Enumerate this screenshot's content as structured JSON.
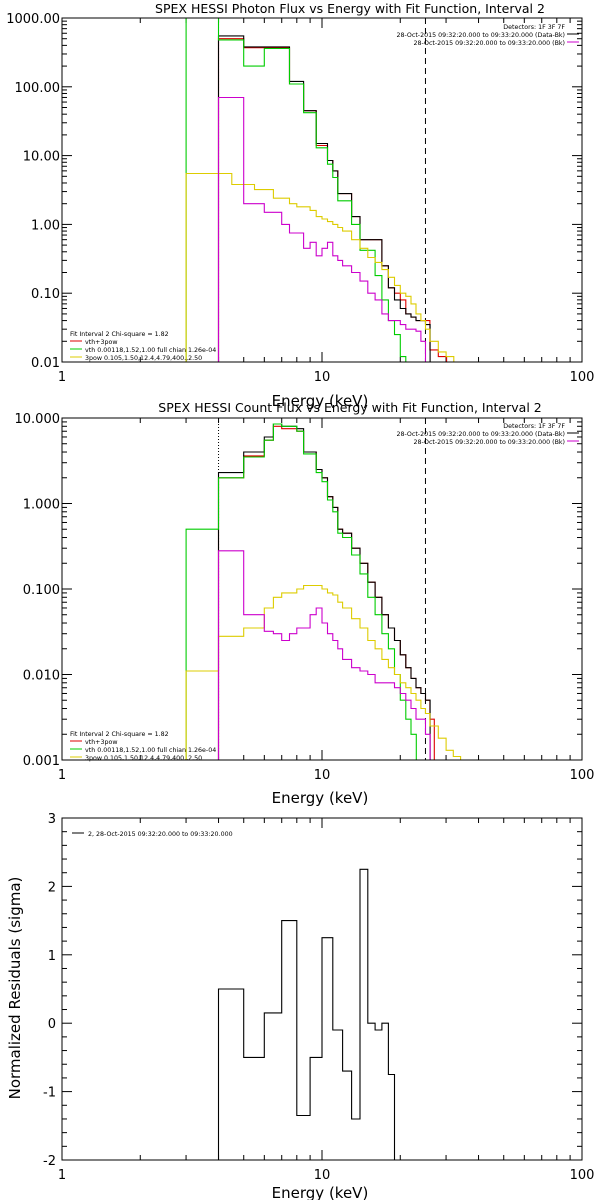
{
  "chart_data": [
    {
      "type": "line",
      "title": "SPEX HESSI Photon Flux vs Energy with Fit Function, Interval 2",
      "xlabel": "Energy (keV)",
      "ylabel": "",
      "xscale": "log",
      "yscale": "log",
      "xlim": [
        1,
        100
      ],
      "ylim": [
        0.01,
        1000
      ],
      "xticklabels": [
        "1",
        "10",
        "100"
      ],
      "yticklabels": [
        "0.01",
        "0.10",
        "1.00",
        "10.00",
        "100.00",
        "1000.00"
      ],
      "info_right": [
        "Detectors: 1F 3F 7F",
        "28-Oct-2015 09:32:20.000 to 09:33:20.000 (Data-Bk)",
        "28-Oct-2015 09:32:20.000 to 09:33:20.000 (Bk)"
      ],
      "legend_left": [
        "Fit Interval 2   Chi-square = 1.82",
        "vth+3pow",
        "vth 0.00118,1.52,1.00  full chian 1.26e-04",
        "3pow 0.105,1.50,12.4,4.79,400.,2.50"
      ],
      "vlines": [
        {
          "x": 4.0,
          "style": "dotted",
          "color": "#cc00cc"
        },
        {
          "x": 25.0,
          "style": "dashed",
          "color": "#000000"
        }
      ],
      "series": [
        {
          "name": "Data-Bk",
          "color": "#000000",
          "x": [
            4,
            4.5,
            5,
            5.5,
            6,
            6.5,
            7,
            7.5,
            8,
            8.5,
            9,
            9.5,
            10,
            10.5,
            11,
            11.5,
            12,
            13,
            14,
            15,
            16,
            17,
            18,
            19,
            20,
            21,
            22,
            23,
            24,
            25
          ],
          "y": [
            550,
            550,
            380,
            380,
            380,
            380,
            380,
            120,
            120,
            45,
            45,
            15,
            15,
            8.5,
            6,
            2.8,
            2.8,
            1.3,
            0.6,
            0.6,
            0.6,
            0.25,
            0.12,
            0.08,
            0.06,
            0.05,
            0.045,
            0.04,
            0.04,
            0.035
          ]
        },
        {
          "name": "vth+3pow",
          "color": "#dd0000",
          "x": [
            4,
            4.5,
            5,
            5.5,
            6,
            6.5,
            7,
            7.5,
            8,
            8.5,
            9,
            9.5,
            10,
            10.5,
            11,
            11.5,
            12,
            13,
            14,
            15,
            16,
            17,
            18,
            19,
            20,
            21,
            22,
            23,
            24,
            25,
            26,
            28
          ],
          "y": [
            500,
            500,
            370,
            370,
            370,
            370,
            370,
            110,
            110,
            45,
            45,
            14,
            14,
            8.5,
            6,
            2.8,
            2.8,
            1.3,
            0.6,
            0.6,
            0.6,
            0.25,
            0.12,
            0.1,
            0.08,
            0.05,
            0.045,
            0.04,
            0.04,
            0.04,
            0.015,
            0.012
          ]
        },
        {
          "name": "vth",
          "color": "#00cc00",
          "x": [
            3,
            4,
            4.5,
            5,
            5.5,
            6,
            6.5,
            7,
            7.5,
            8,
            8.5,
            9,
            9.5,
            10,
            10.5,
            11,
            11.5,
            12,
            13,
            14,
            15,
            16,
            17,
            18,
            19,
            20,
            21
          ],
          "y": [
            1000,
            480,
            480,
            200,
            200,
            360,
            360,
            360,
            110,
            110,
            42,
            42,
            13,
            13,
            7.5,
            4.8,
            2.2,
            2.2,
            1,
            0.42,
            0.42,
            0.18,
            0.08,
            0.04,
            0.025,
            0.012,
            0.01
          ]
        },
        {
          "name": "3pow",
          "color": "#ddcc00",
          "x": [
            3,
            4,
            4.5,
            5,
            5.5,
            6,
            6.5,
            7,
            7.5,
            8,
            8.5,
            9,
            9.5,
            10,
            10.5,
            11,
            11.5,
            12,
            13,
            14,
            15,
            16,
            17,
            18,
            19,
            20,
            21,
            22,
            23,
            24,
            25,
            26,
            28,
            30
          ],
          "y": [
            5.5,
            5.5,
            3.8,
            3.8,
            3.2,
            3.2,
            2.4,
            2.4,
            2.0,
            1.8,
            1.8,
            1.6,
            1.3,
            1.2,
            1.1,
            1.0,
            0.9,
            0.8,
            0.6,
            0.45,
            0.33,
            0.28,
            0.22,
            0.17,
            0.13,
            0.1,
            0.09,
            0.07,
            0.05,
            0.04,
            0.03,
            0.02,
            0.014,
            0.012
          ]
        },
        {
          "name": "Bk",
          "color": "#cc00cc",
          "x": [
            4,
            4.5,
            5,
            5.5,
            6,
            6.5,
            7,
            7.5,
            8,
            8.5,
            9,
            9.5,
            10,
            10.5,
            11,
            11.5,
            12,
            13,
            14,
            15,
            16,
            17,
            18,
            19,
            20,
            21,
            22,
            23,
            24,
            25
          ],
          "y": [
            70,
            70,
            2.0,
            2.0,
            1.5,
            1.5,
            1.0,
            0.75,
            0.75,
            0.45,
            0.55,
            0.35,
            0.45,
            0.55,
            0.35,
            0.3,
            0.25,
            0.2,
            0.15,
            0.1,
            0.08,
            0.05,
            0.04,
            0.04,
            0.035,
            0.03,
            0.03,
            0.028,
            0.02,
            0.01
          ]
        }
      ]
    },
    {
      "type": "line",
      "title": "SPEX HESSI Count Flux vs Energy with Fit Function, Interval 2",
      "xlabel": "Energy (keV)",
      "ylabel": "",
      "xscale": "log",
      "yscale": "log",
      "xlim": [
        1,
        100
      ],
      "ylim": [
        0.001,
        10
      ],
      "xticklabels": [
        "1",
        "10",
        "100"
      ],
      "yticklabels": [
        "0.001",
        "0.010",
        "0.100",
        "1.000",
        "10.000"
      ],
      "info_right": [
        "Detectors: 1F 3F 7F",
        "28-Oct-2015 09:32:20.000 to 09:33:20.000 (Data-Bk)",
        "28-Oct-2015 09:32:20.000 to 09:33:20.000 (Bk)"
      ],
      "legend_left": [
        "Fit Interval 2   Chi-square = 1.82",
        "vth+3pow",
        "vth 0.00118,1.52,1.00  full chian 1.26e-04",
        "3pow 0.105,1.50,12.4,4.79,400.,2.50"
      ],
      "vlines": [
        {
          "x": 4.0,
          "style": "dotted",
          "color": "#000000"
        },
        {
          "x": 25.0,
          "style": "dashed",
          "color": "#000000"
        }
      ],
      "series": [
        {
          "name": "Data-Bk",
          "color": "#000000",
          "x": [
            4,
            4.5,
            5,
            5.5,
            6,
            6.5,
            7,
            7.5,
            8,
            8.5,
            9,
            9.5,
            10,
            10.5,
            11,
            11.5,
            12,
            13,
            14,
            15,
            16,
            17,
            18,
            19,
            20,
            21,
            22,
            23,
            24,
            25
          ],
          "y": [
            2.3,
            2.3,
            4.0,
            4.0,
            6.0,
            8.5,
            8.0,
            8.0,
            7.5,
            4.0,
            4.0,
            2.5,
            2.0,
            1.2,
            0.9,
            0.5,
            0.45,
            0.3,
            0.2,
            0.12,
            0.08,
            0.05,
            0.035,
            0.025,
            0.017,
            0.012,
            0.009,
            0.007,
            0.006,
            0.005
          ]
        },
        {
          "name": "vth+3pow",
          "color": "#dd0000",
          "x": [
            4,
            4.5,
            5,
            5.5,
            6,
            6.5,
            7,
            7.5,
            8,
            8.5,
            9,
            9.5,
            10,
            10.5,
            11,
            11.5,
            12,
            13,
            14,
            15,
            16,
            17,
            18,
            19,
            20,
            21,
            22,
            23,
            24,
            25,
            26
          ],
          "y": [
            2.0,
            2.0,
            3.6,
            3.6,
            5.5,
            8.0,
            7.5,
            7.5,
            7.0,
            4.0,
            4.0,
            2.5,
            2.0,
            1.2,
            0.9,
            0.5,
            0.45,
            0.3,
            0.2,
            0.12,
            0.08,
            0.05,
            0.035,
            0.025,
            0.017,
            0.012,
            0.009,
            0.007,
            0.006,
            0.005,
            0.003
          ]
        },
        {
          "name": "vth",
          "color": "#00cc00",
          "x": [
            3,
            4,
            4.5,
            5,
            5.5,
            6,
            6.5,
            7,
            7.5,
            8,
            8.5,
            9,
            9.5,
            10,
            10.5,
            11,
            11.5,
            12,
            13,
            14,
            15,
            16,
            17,
            18,
            19,
            20,
            21,
            22
          ],
          "y": [
            0.5,
            2.0,
            2.0,
            3.5,
            3.5,
            5.5,
            8.5,
            8.0,
            8.0,
            7.0,
            3.8,
            3.8,
            2.3,
            1.8,
            1.1,
            0.8,
            0.45,
            0.4,
            0.25,
            0.15,
            0.08,
            0.05,
            0.03,
            0.02,
            0.01,
            0.005,
            0.003,
            0.002
          ]
        },
        {
          "name": "3pow",
          "color": "#ddcc00",
          "x": [
            3,
            4,
            4.5,
            5,
            5.5,
            6,
            6.5,
            7,
            7.5,
            8,
            8.5,
            9,
            9.5,
            10,
            10.5,
            11,
            11.5,
            12,
            13,
            14,
            15,
            16,
            17,
            18,
            19,
            20,
            21,
            22,
            23,
            24,
            25,
            26,
            28,
            30,
            32
          ],
          "y": [
            0.011,
            0.028,
            0.028,
            0.035,
            0.035,
            0.06,
            0.08,
            0.09,
            0.09,
            0.1,
            0.11,
            0.11,
            0.11,
            0.1,
            0.09,
            0.085,
            0.07,
            0.06,
            0.045,
            0.035,
            0.025,
            0.02,
            0.015,
            0.012,
            0.01,
            0.008,
            0.007,
            0.006,
            0.005,
            0.004,
            0.0035,
            0.0025,
            0.0018,
            0.0013,
            0.0011
          ]
        },
        {
          "name": "Bk",
          "color": "#cc00cc",
          "x": [
            4,
            4.5,
            5,
            5.5,
            6,
            6.5,
            7,
            7.5,
            8,
            8.5,
            9,
            9.5,
            10,
            10.5,
            11,
            11.5,
            12,
            13,
            14,
            15,
            16,
            17,
            18,
            19,
            20,
            21,
            22,
            23,
            24,
            25
          ],
          "y": [
            0.28,
            0.28,
            0.05,
            0.05,
            0.032,
            0.03,
            0.025,
            0.03,
            0.035,
            0.035,
            0.05,
            0.06,
            0.04,
            0.03,
            0.025,
            0.02,
            0.015,
            0.012,
            0.011,
            0.01,
            0.008,
            0.008,
            0.008,
            0.007,
            0.006,
            0.005,
            0.004,
            0.003,
            0.003,
            0.002
          ]
        }
      ]
    },
    {
      "type": "line",
      "title": "",
      "xlabel": "Energy (keV)",
      "ylabel": "Normalized Residuals (sigma)",
      "xscale": "log",
      "yscale": "linear",
      "xlim": [
        1,
        100
      ],
      "ylim": [
        -2,
        3
      ],
      "xticklabels": [
        "1",
        "10",
        "100"
      ],
      "yticklabels": [
        "-2",
        "-1",
        "0",
        "1",
        "2",
        "3"
      ],
      "legend_left": [
        "2, 28-Oct-2015 09:32:20.000 to 09:33:20.000"
      ],
      "series": [
        {
          "name": "2, 28-Oct-2015 09:32:20.000 to 09:33:20.000",
          "color": "#000000",
          "x": [
            4,
            5,
            6,
            7,
            8,
            9,
            10,
            11,
            12,
            13,
            14,
            15,
            16,
            17,
            18,
            19,
            20,
            21,
            22,
            23,
            24,
            25
          ],
          "y": [
            0.5,
            -0.5,
            0.15,
            1.5,
            -1.35,
            -0.5,
            1.25,
            -0.1,
            -0.7,
            -1.4,
            2.25,
            0.0,
            -0.1,
            0.0,
            -0.75,
            -2.0,
            -2.0,
            -2.0,
            -2.0,
            -2.0,
            -2.0,
            -2.0
          ]
        }
      ]
    }
  ]
}
